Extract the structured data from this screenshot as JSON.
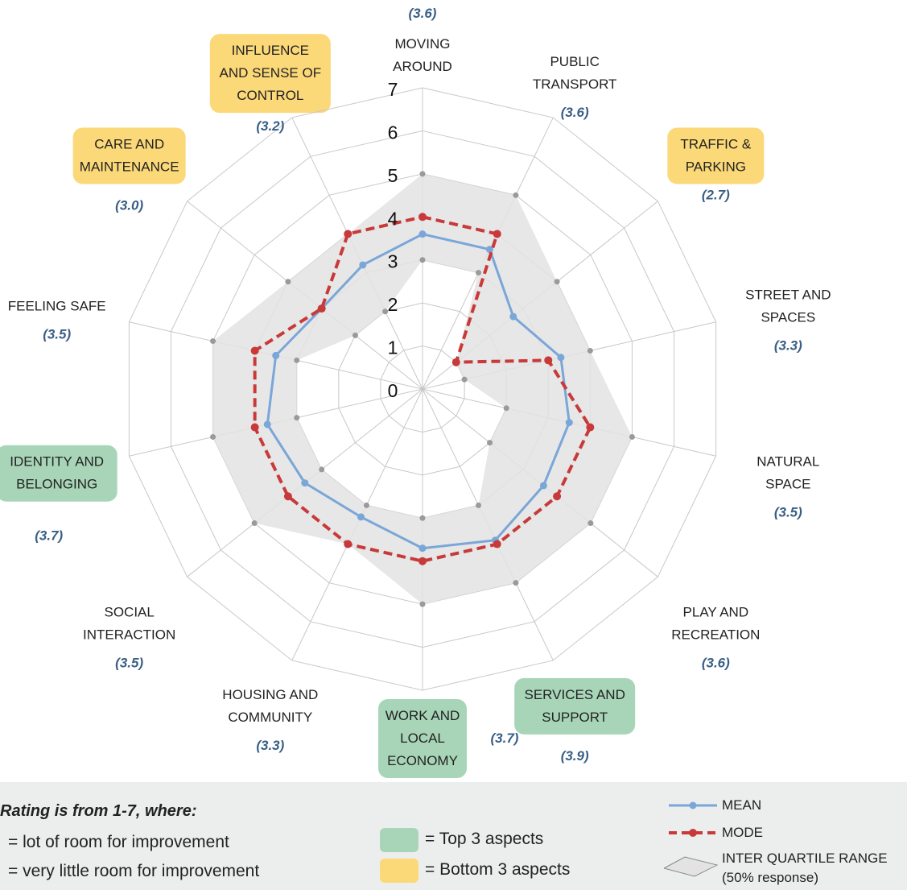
{
  "chart_data": {
    "type": "radar",
    "axis_ticks": [
      "0",
      "1",
      "2",
      "3",
      "4",
      "5",
      "6",
      "7"
    ],
    "rlim": [
      0,
      7
    ],
    "colors": {
      "mean": "#7aa6d8",
      "mode": "#c83a3a",
      "iqr": "#e3e3e3",
      "top3": "#a8d5b8",
      "bottom3": "#fbd878"
    },
    "categories": [
      {
        "lines": [
          "MOVING",
          "AROUND"
        ],
        "score": "(3.6)",
        "highlight": "none"
      },
      {
        "lines": [
          "PUBLIC",
          "TRANSPORT"
        ],
        "score": "(3.6)",
        "highlight": "none"
      },
      {
        "lines": [
          "TRAFFIC &",
          "PARKING"
        ],
        "score": "(2.7)",
        "highlight": "bottom"
      },
      {
        "lines": [
          "STREET AND",
          "SPACES"
        ],
        "score": "(3.3)",
        "highlight": "none"
      },
      {
        "lines": [
          "NATURAL",
          "SPACE"
        ],
        "score": "(3.5)",
        "highlight": "none"
      },
      {
        "lines": [
          "PLAY AND",
          "RECREATION"
        ],
        "score": "(3.6)",
        "highlight": "none"
      },
      {
        "lines": [
          "SERVICES AND",
          "SUPPORT"
        ],
        "score": "(3.9)",
        "highlight": "top"
      },
      {
        "lines": [
          "WORK AND",
          "LOCAL",
          "ECONOMY"
        ],
        "score": "(3.7)",
        "highlight": "top"
      },
      {
        "lines": [
          "HOUSING AND",
          "COMMUNITY"
        ],
        "score": "(3.3)",
        "highlight": "none"
      },
      {
        "lines": [
          "SOCIAL",
          "INTERACTION"
        ],
        "score": "(3.5)",
        "highlight": "none"
      },
      {
        "lines": [
          "IDENTITY AND",
          "BELONGING"
        ],
        "score": "(3.7)",
        "highlight": "top"
      },
      {
        "lines": [
          "FEELING SAFE"
        ],
        "score": "(3.5)",
        "highlight": "none"
      },
      {
        "lines": [
          "CARE AND",
          "MAINTENANCE"
        ],
        "score": "(3.0)",
        "highlight": "bottom"
      },
      {
        "lines": [
          "INFLUENCE",
          "AND SENSE OF",
          "CONTROL"
        ],
        "score": "(3.2)",
        "highlight": "bottom"
      }
    ],
    "series": [
      {
        "name": "MEAN",
        "values": [
          3.6,
          3.6,
          2.7,
          3.3,
          3.5,
          3.6,
          3.9,
          3.7,
          3.3,
          3.5,
          3.7,
          3.5,
          3.0,
          3.2
        ]
      },
      {
        "name": "MODE",
        "values": [
          4,
          4,
          1,
          3,
          4,
          4,
          4,
          4,
          4,
          4,
          4,
          4,
          3,
          4
        ]
      },
      {
        "name": "INTER QUARTILE RANGE",
        "upper": [
          5,
          5,
          4,
          4,
          5,
          5,
          5,
          5,
          4,
          5,
          5,
          5,
          4,
          4
        ],
        "lower": [
          3,
          3,
          1,
          1,
          2,
          2,
          3,
          3,
          3,
          3,
          3,
          3,
          2,
          2
        ]
      }
    ]
  },
  "legend": {
    "rating_title": "Rating is from 1-7, where:",
    "rating_low": "= lot of room for improvement",
    "rating_high": "= very little room for improvement",
    "top3": "= Top 3 aspects",
    "bottom3": "= Bottom 3 aspects",
    "mean": "MEAN",
    "mode": "MODE",
    "iqr_line1": "INTER QUARTILE RANGE",
    "iqr_line2": "(50% response)"
  }
}
